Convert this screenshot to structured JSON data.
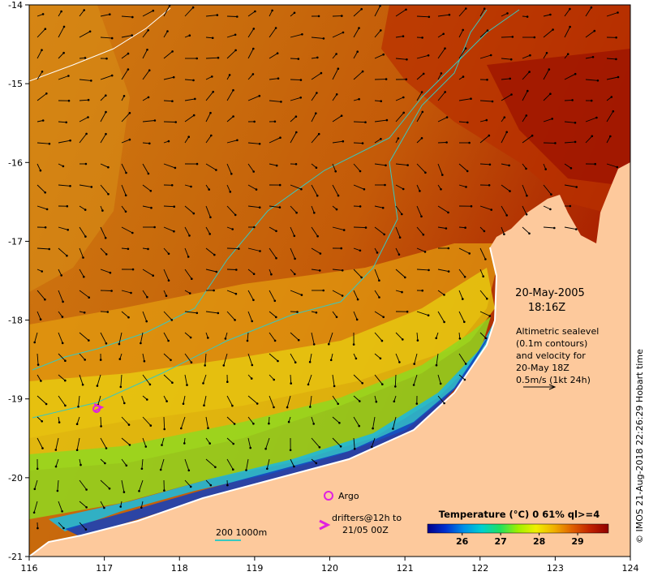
{
  "map": {
    "date": "20-May-2005",
    "time": "18:16Z",
    "x_ticks": [
      "116",
      "117",
      "118",
      "119",
      "120",
      "121",
      "122",
      "123",
      "124"
    ],
    "y_ticks": [
      "-14",
      "-15",
      "-16",
      "-17",
      "-18",
      "-19",
      "-20",
      "-21"
    ],
    "x_range": [
      116,
      124
    ],
    "y_range": [
      -21,
      -14
    ],
    "land_color": "#fdc99c",
    "shelf_contour_color": "#38c8c0"
  },
  "annotation": {
    "lines": [
      "Altimetric sealevel",
      "(0.1m contours)",
      "and velocity for",
      "20-May 18Z",
      "0.5m/s (1kt 24h)"
    ]
  },
  "legend": {
    "argo_label": "Argo",
    "drifters_lines": [
      "drifters@12h to",
      "21/05 00Z"
    ],
    "contour_label": "200  1000m",
    "argo_color": "#e020e0"
  },
  "colorbar": {
    "title": "Temperature (°C) 0 61% ql>=4",
    "ticks": [
      "26",
      "27",
      "28",
      "29"
    ],
    "tick_values": [
      26,
      27,
      28,
      29
    ],
    "vmin": 25.1,
    "vmax": 29.8,
    "colors": [
      "#00008a",
      "#0030d0",
      "#0090e8",
      "#00d0d0",
      "#20e060",
      "#a0f000",
      "#f0f000",
      "#f0b000",
      "#e06000",
      "#c02000",
      "#900000"
    ]
  },
  "credit": "© IMOS 21-Aug-2018 22:26:29 Hobart time"
}
